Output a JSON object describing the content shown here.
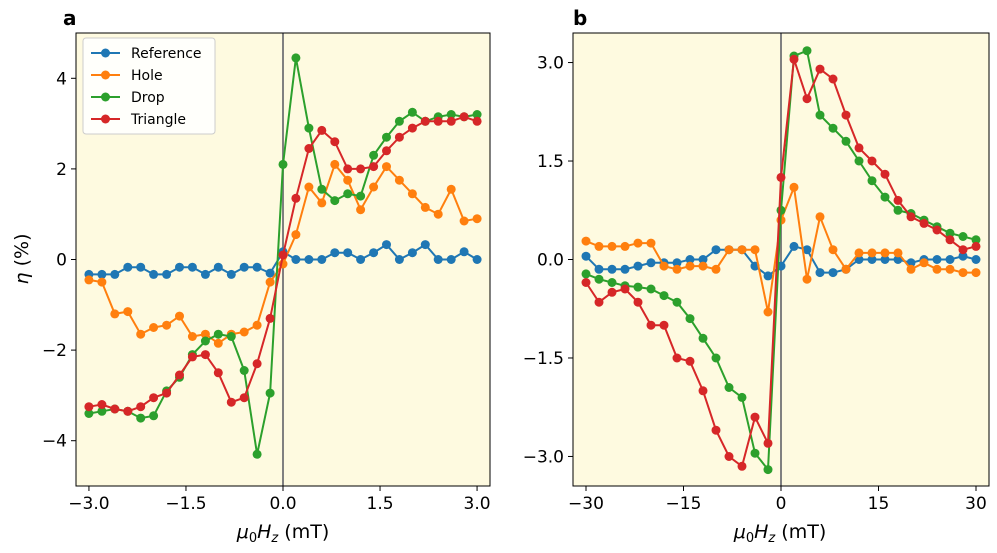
{
  "chart_data": [
    {
      "type": "line",
      "panel_label": "a",
      "xlabel_main": "μ",
      "xlabel_sub1": "0",
      "xlabel_H": "H",
      "xlabel_sub2": "z",
      "xlabel_unit": " (mT)",
      "ylabel_eta": "η",
      "ylabel_unit": " (%)",
      "xlim": [
        -3.2,
        3.2
      ],
      "ylim": [
        -5.0,
        5.0
      ],
      "xticks": [
        -3.0,
        -1.5,
        0.0,
        1.5,
        3.0
      ],
      "xtick_labels": [
        "−3.0",
        "−1.5",
        "0.0",
        "1.5",
        "3.0"
      ],
      "yticks": [
        -4,
        -2,
        0,
        2,
        4
      ],
      "ytick_labels": [
        "−4",
        "−2",
        "0",
        "2",
        "4"
      ],
      "zero_line": true,
      "legend_position": "top-left",
      "x": [
        -3.0,
        -2.8,
        -2.6,
        -2.4,
        -2.2,
        -2.0,
        -1.8,
        -1.6,
        -1.4,
        -1.2,
        -1.0,
        -0.8,
        -0.6,
        -0.4,
        -0.2,
        0.0,
        0.2,
        0.4,
        0.6,
        0.8,
        1.0,
        1.2,
        1.4,
        1.6,
        1.8,
        2.0,
        2.2,
        2.4,
        2.6,
        2.8,
        3.0
      ],
      "series": [
        {
          "name": "Reference",
          "color": "#1f77b4",
          "values": [
            -0.33,
            -0.33,
            -0.33,
            -0.17,
            -0.17,
            -0.33,
            -0.33,
            -0.17,
            -0.17,
            -0.33,
            -0.17,
            -0.33,
            -0.17,
            -0.17,
            -0.3,
            0.17,
            0.0,
            0.0,
            0.0,
            0.15,
            0.15,
            0.0,
            0.15,
            0.33,
            0.0,
            0.15,
            0.33,
            0.0,
            0.0,
            0.17,
            0.0
          ]
        },
        {
          "name": "Hole",
          "color": "#ff7f0e",
          "values": [
            -0.45,
            -0.5,
            -1.2,
            -1.15,
            -1.65,
            -1.5,
            -1.45,
            -1.25,
            -1.7,
            -1.65,
            -1.85,
            -1.65,
            -1.6,
            -1.45,
            -0.5,
            -0.1,
            0.55,
            1.6,
            1.25,
            2.1,
            1.75,
            1.1,
            1.6,
            2.05,
            1.75,
            1.45,
            1.15,
            1.0,
            1.55,
            0.85,
            0.9
          ]
        },
        {
          "name": "Drop",
          "color": "#2ca02c",
          "values": [
            -3.4,
            -3.35,
            -3.3,
            -3.35,
            -3.5,
            -3.45,
            -2.9,
            -2.6,
            -2.1,
            -1.8,
            -1.65,
            -1.7,
            -2.45,
            -4.3,
            -2.95,
            2.1,
            4.45,
            2.9,
            1.55,
            1.3,
            1.45,
            1.4,
            2.3,
            2.7,
            3.05,
            3.25,
            3.05,
            3.15,
            3.2,
            3.15,
            3.2
          ]
        },
        {
          "name": "Triangle",
          "color": "#d62728",
          "values": [
            -3.25,
            -3.2,
            -3.3,
            -3.35,
            -3.25,
            -3.05,
            -2.95,
            -2.55,
            -2.15,
            -2.1,
            -2.5,
            -3.15,
            -3.05,
            -2.3,
            -1.3,
            0.1,
            1.35,
            2.45,
            2.85,
            2.6,
            2.0,
            2.0,
            2.05,
            2.4,
            2.7,
            2.9,
            3.05,
            3.05,
            3.05,
            3.15,
            3.05
          ]
        }
      ]
    },
    {
      "type": "line",
      "panel_label": "b",
      "xlabel_main": "μ",
      "xlabel_sub1": "0",
      "xlabel_H": "H",
      "xlabel_sub2": "z",
      "xlabel_unit": " (mT)",
      "xlim": [
        -32,
        32
      ],
      "ylim": [
        -3.45,
        3.45
      ],
      "xticks": [
        -30,
        -15,
        0,
        15,
        30
      ],
      "xtick_labels": [
        "−30",
        "−15",
        "0",
        "15",
        "30"
      ],
      "yticks": [
        -3.0,
        -1.5,
        0.0,
        1.5,
        3.0
      ],
      "ytick_labels": [
        "−3.0",
        "−1.5",
        "0.0",
        "1.5",
        "3.0"
      ],
      "zero_line": true,
      "x": [
        -30,
        -28,
        -26,
        -24,
        -22,
        -20,
        -18,
        -16,
        -14,
        -12,
        -10,
        -8,
        -6,
        -4,
        -2,
        0,
        2,
        4,
        6,
        8,
        10,
        12,
        14,
        16,
        18,
        20,
        22,
        24,
        26,
        28,
        30
      ],
      "series": [
        {
          "name": "Reference",
          "color": "#1f77b4",
          "values": [
            0.05,
            -0.15,
            -0.15,
            -0.15,
            -0.1,
            -0.05,
            -0.05,
            -0.05,
            0.0,
            0.0,
            0.15,
            0.15,
            0.15,
            -0.1,
            -0.25,
            -0.1,
            0.2,
            0.15,
            -0.2,
            -0.2,
            -0.15,
            0.0,
            0.0,
            0.0,
            0.0,
            -0.05,
            0.0,
            0.0,
            0.0,
            0.05,
            0.0
          ]
        },
        {
          "name": "Hole",
          "color": "#ff7f0e",
          "values": [
            0.28,
            0.2,
            0.2,
            0.2,
            0.25,
            0.25,
            -0.1,
            -0.15,
            -0.1,
            -0.1,
            -0.15,
            0.15,
            0.15,
            0.15,
            -0.8,
            0.6,
            1.1,
            -0.3,
            0.65,
            0.15,
            -0.15,
            0.1,
            0.1,
            0.1,
            0.1,
            -0.15,
            -0.05,
            -0.15,
            -0.15,
            -0.2,
            -0.2
          ]
        },
        {
          "name": "Drop",
          "color": "#2ca02c",
          "values": [
            -0.22,
            -0.3,
            -0.35,
            -0.4,
            -0.42,
            -0.45,
            -0.55,
            -0.65,
            -0.9,
            -1.2,
            -1.5,
            -1.95,
            -2.1,
            -2.95,
            -3.2,
            0.75,
            3.1,
            3.18,
            2.2,
            2.0,
            1.8,
            1.5,
            1.2,
            0.95,
            0.75,
            0.7,
            0.6,
            0.5,
            0.4,
            0.35,
            0.3
          ]
        },
        {
          "name": "Triangle",
          "color": "#d62728",
          "values": [
            -0.35,
            -0.65,
            -0.5,
            -0.45,
            -0.65,
            -1.0,
            -1.0,
            -1.5,
            -1.55,
            -2.0,
            -2.6,
            -3.0,
            -3.15,
            -2.4,
            -2.8,
            1.25,
            3.05,
            2.45,
            2.9,
            2.75,
            2.2,
            1.7,
            1.5,
            1.3,
            0.9,
            0.65,
            0.55,
            0.45,
            0.3,
            0.15,
            0.2
          ]
        }
      ]
    }
  ]
}
